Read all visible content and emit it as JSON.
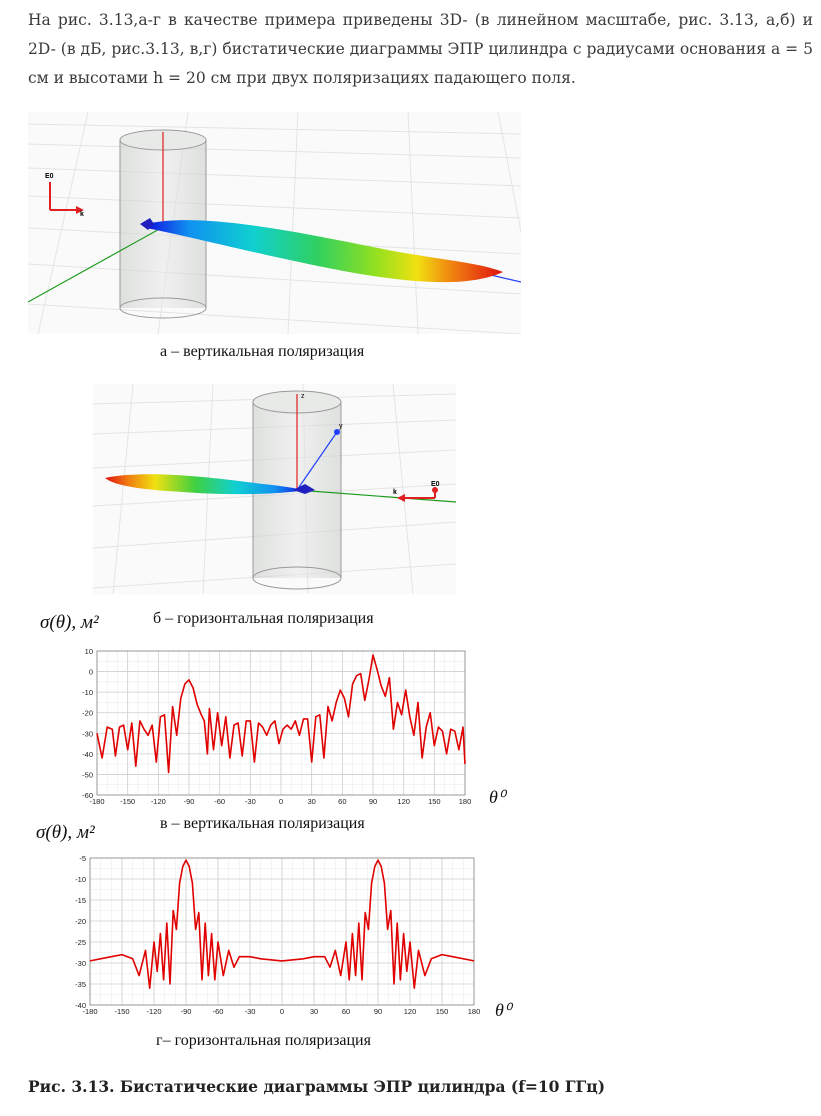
{
  "intro_text": "На рис. 3.13,а-г в качестве примера приведены 3D- (в линейном масштабе, рис. 3.13, а,б) и 2D- (в дБ, рис.3.13, в,г) бистатические диаграммы ЭПР цилиндра с радиусами основания a = 5 см и высотами h = 20 см при двух поляризациях падающего поля.",
  "figures": {
    "a": {
      "caption": "а – вертикальная поляризация",
      "axis_e0": "E0",
      "axis_k": "k"
    },
    "b": {
      "caption": "б – горизонтальная поляризация",
      "axis_e0": "E0",
      "axis_k": "k",
      "axis_z": "z",
      "axis_y": "y"
    },
    "v": {
      "caption": "в  – вертикальная поляризация",
      "ylabel": "σ(θ), м²",
      "xlabel": "θ⁰"
    },
    "g": {
      "caption": "г– горизонтальная поляризация",
      "ylabel": "σ(θ), м²",
      "xlabel": "θ⁰"
    }
  },
  "figure_caption": "Рис. 3.13. Бистатические диаграммы ЭПР цилиндра (f=10 ГГц)",
  "colors": {
    "curve": "#e00000",
    "grid": "#d8d8d8",
    "axis_red": "#e02020",
    "axis_green": "#1e9b1e",
    "axis_blue": "#2040ff"
  },
  "chart_data": [
    {
      "type": "line",
      "caption": "в – вертикальная поляризация",
      "ylabel": "σ(θ), м²",
      "xlabel": "θ⁰",
      "xlim": [
        -180,
        180
      ],
      "ylim": [
        -60,
        10
      ],
      "xticks": [
        -180,
        -150,
        -120,
        -90,
        -60,
        -30,
        0,
        30,
        60,
        90,
        120,
        150,
        180
      ],
      "yticks": [
        10,
        0,
        -10,
        -20,
        -30,
        -40,
        -50,
        -60
      ],
      "grid": true,
      "series": [
        {
          "x": [
            -180,
            -175,
            -170,
            -165,
            -162,
            -158,
            -154,
            -150,
            -146,
            -142,
            -138,
            -134,
            -130,
            -126,
            -122,
            -118,
            -114,
            -110,
            -106,
            -102,
            -98,
            -94,
            -90,
            -86,
            -82,
            -78,
            -75,
            -72,
            -70,
            -66,
            -62,
            -58,
            -54,
            -50,
            -46,
            -42,
            -38,
            -34,
            -30,
            -26,
            -22,
            -18,
            -14,
            -10,
            -6,
            -2,
            2,
            6,
            10,
            14,
            18,
            22,
            26,
            30,
            34,
            38,
            42,
            46,
            50,
            54,
            58,
            62,
            66,
            70,
            74,
            78,
            82,
            86,
            90,
            94,
            98,
            102,
            106,
            110,
            114,
            118,
            122,
            126,
            130,
            134,
            138,
            142,
            146,
            150,
            154,
            158,
            162,
            166,
            170,
            174,
            178,
            180
          ],
          "y": [
            -30,
            -42,
            -27,
            -28,
            -41,
            -27,
            -26,
            -38,
            -25,
            -46,
            -24,
            -28,
            -31,
            -26,
            -44,
            -22,
            -21,
            -49,
            -17,
            -31,
            -13,
            -6,
            -4,
            -8,
            -16,
            -21,
            -24,
            -40,
            -18,
            -38,
            -20,
            -36,
            -22,
            -42,
            -26,
            -25,
            -41,
            -24,
            -24,
            -44,
            -25,
            -27,
            -31,
            -26,
            -24,
            -35,
            -28,
            -26,
            -28,
            -24,
            -31,
            -23,
            -23,
            -44,
            -22,
            -21,
            -42,
            -17,
            -24,
            -15,
            -9,
            -13,
            -22,
            -6,
            -2,
            -1,
            -14,
            -4,
            8,
            1,
            -7,
            -12,
            -3,
            -28,
            -15,
            -21,
            -9,
            -22,
            -31,
            -15,
            -42,
            -27,
            -20,
            -36,
            -27,
            -29,
            -40,
            -28,
            -29,
            -38,
            -27,
            -45
          ]
        }
      ]
    },
    {
      "type": "line",
      "caption": "г– горизонтальная поляризация",
      "ylabel": "σ(θ), м²",
      "xlabel": "θ⁰",
      "xlim": [
        -180,
        180
      ],
      "ylim": [
        -40,
        -5
      ],
      "xticks": [
        -180,
        -150,
        -120,
        -90,
        -60,
        -30,
        0,
        30,
        60,
        90,
        120,
        150,
        180
      ],
      "yticks": [
        -5,
        -10,
        -15,
        -20,
        -25,
        -30,
        -35,
        -40
      ],
      "grid": true,
      "series": [
        {
          "x": [
            -180,
            -160,
            -150,
            -140,
            -134,
            -128,
            -124,
            -120,
            -117,
            -114,
            -111,
            -108,
            -105,
            -102,
            -99,
            -96,
            -93,
            -90,
            -87,
            -84,
            -81,
            -78,
            -75,
            -72,
            -69,
            -66,
            -63,
            -60,
            -55,
            -50,
            -45,
            -40,
            -30,
            -20,
            0,
            20,
            30,
            40,
            45,
            50,
            55,
            60,
            63,
            66,
            69,
            72,
            75,
            78,
            81,
            84,
            87,
            90,
            93,
            96,
            99,
            102,
            105,
            108,
            111,
            114,
            117,
            120,
            124,
            128,
            134,
            140,
            150,
            160,
            180
          ],
          "y": [
            -29.5,
            -28.5,
            -28,
            -29,
            -33,
            -27,
            -36,
            -25,
            -32,
            -23,
            -34,
            -20.5,
            -35,
            -17.5,
            -22,
            -11,
            -7,
            -5.5,
            -7,
            -11,
            -22,
            -18,
            -34,
            -20.5,
            -33,
            -23,
            -34,
            -25,
            -33,
            -27,
            -31,
            -28.5,
            -28.5,
            -29,
            -29.5,
            -29,
            -28.5,
            -28.5,
            -31,
            -27,
            -33,
            -25,
            -34,
            -23,
            -33,
            -20.5,
            -34,
            -18,
            -22,
            -11,
            -7,
            -5.5,
            -7,
            -11,
            -22,
            -17.5,
            -35,
            -20.5,
            -34,
            -23,
            -32,
            -25,
            -36,
            -27,
            -33,
            -29,
            -28,
            -28.5,
            -29.5
          ]
        }
      ]
    }
  ]
}
